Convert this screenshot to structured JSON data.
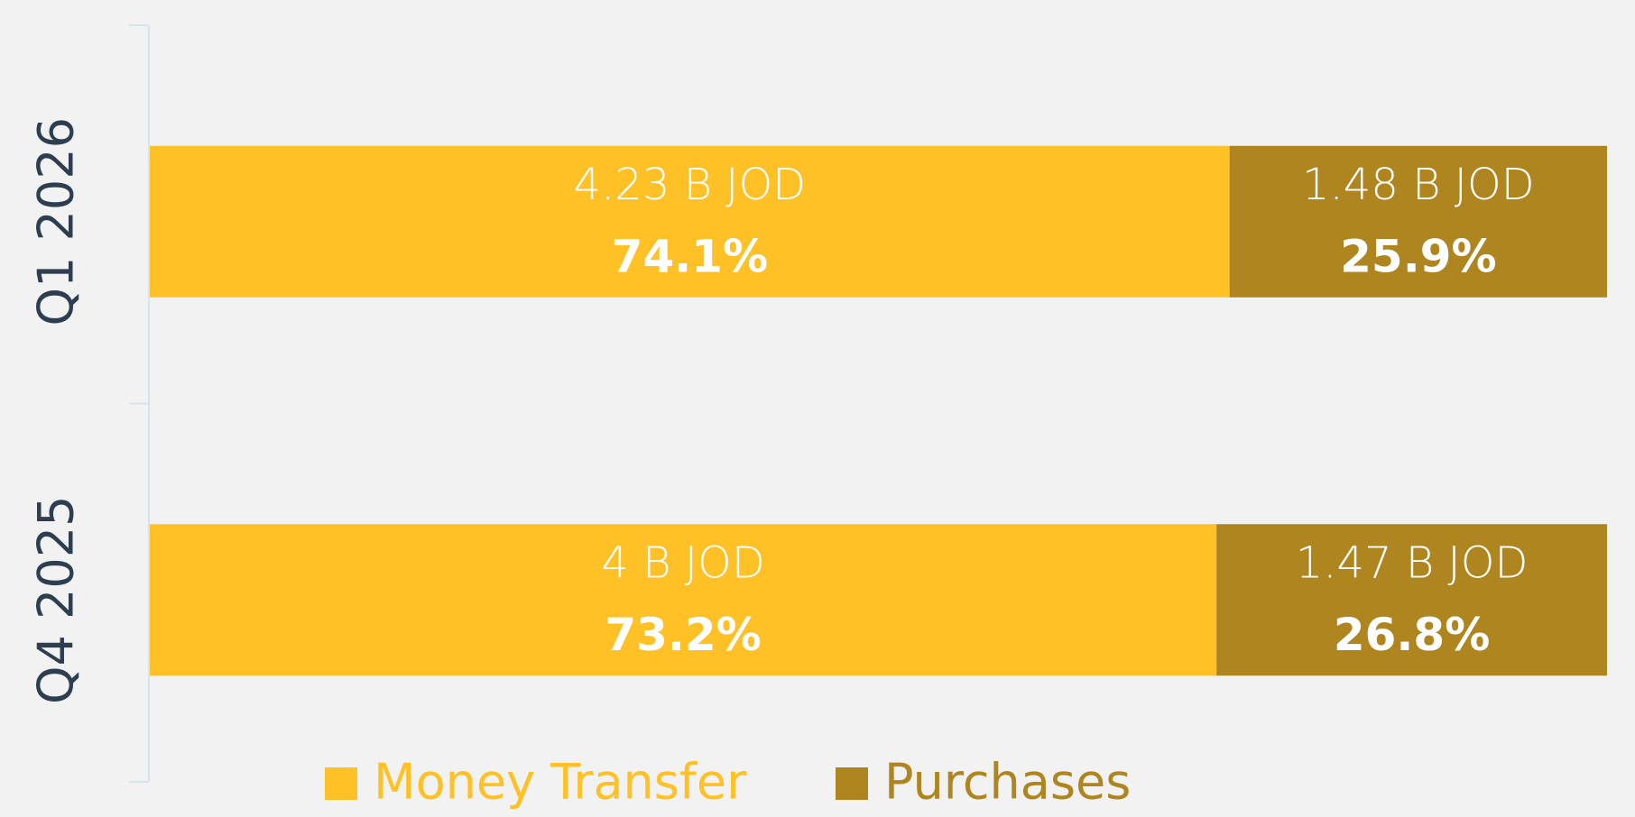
{
  "chart_data": {
    "type": "stacked_bar_horizontal",
    "categories": [
      "Q1 2026",
      "Q4 2025"
    ],
    "xlim": [
      0,
      100
    ],
    "series": [
      {
        "name": "Money Transfer",
        "color": "#ffc125",
        "values": [
          74.1,
          73.2
        ],
        "value_labels": [
          "74.1%",
          "73.2%"
        ],
        "amount_labels": [
          "4.23 B JOD",
          "4 B JOD"
        ]
      },
      {
        "name": "Purchases",
        "color": "#af8520",
        "values": [
          25.9,
          26.8
        ],
        "value_labels": [
          "25.9%",
          "26.8%"
        ],
        "amount_labels": [
          "1.48 B JOD",
          "1.47 B JOD"
        ]
      }
    ],
    "legend": "bottom"
  }
}
